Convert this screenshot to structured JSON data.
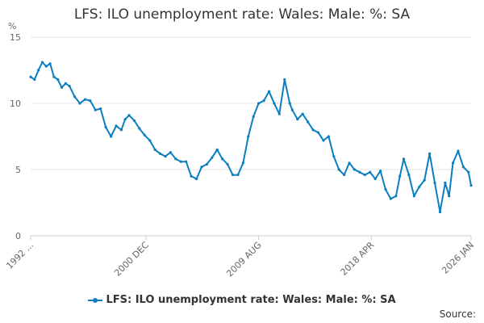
{
  "chart_data": {
    "type": "line",
    "title": "LFS: ILO unemployment rate: Wales: Male: %: SA",
    "ylabel": "%",
    "xlabel": "",
    "ylim": [
      0,
      15
    ],
    "yticks": [
      0,
      5,
      10,
      15
    ],
    "xlim": [
      1992.0,
      2026.0
    ],
    "xticks": [
      {
        "label": "1992 ...",
        "value": 1992.0
      },
      {
        "label": "2000 DEC",
        "value": 2000.9
      },
      {
        "label": "2009 AUG",
        "value": 2009.6
      },
      {
        "label": "2018 APR",
        "value": 2018.3
      },
      {
        "label": "2026 JAN",
        "value": 2026.0
      }
    ],
    "color": "#0a7ebf",
    "series": [
      {
        "name": "LFS: ILO unemployment rate: Wales: Male: %: SA",
        "x": [
          1992.0,
          1992.3,
          1992.6,
          1992.9,
          1993.2,
          1993.5,
          1993.8,
          1994.1,
          1994.4,
          1994.7,
          1995.0,
          1995.4,
          1995.8,
          1996.2,
          1996.6,
          1997.0,
          1997.4,
          1997.8,
          1998.2,
          1998.6,
          1999.0,
          1999.3,
          1999.6,
          2000.0,
          2000.4,
          2000.8,
          2001.2,
          2001.6,
          2002.0,
          2002.4,
          2002.8,
          2003.2,
          2003.6,
          2004.0,
          2004.4,
          2004.8,
          2005.2,
          2005.6,
          2006.0,
          2006.4,
          2006.8,
          2007.2,
          2007.6,
          2008.0,
          2008.4,
          2008.8,
          2009.2,
          2009.6,
          2010.0,
          2010.4,
          2010.8,
          2011.2,
          2011.6,
          2012.0,
          2012.2,
          2012.6,
          2013.0,
          2013.4,
          2013.8,
          2014.2,
          2014.6,
          2015.0,
          2015.4,
          2015.8,
          2016.2,
          2016.6,
          2017.0,
          2017.4,
          2017.8,
          2018.2,
          2018.6,
          2019.0,
          2019.4,
          2019.8,
          2020.2,
          2020.5,
          2020.8,
          2021.2,
          2021.6,
          2022.0,
          2022.4,
          2022.8,
          2023.2,
          2023.6,
          2024.0,
          2024.3,
          2024.6,
          2025.0,
          2025.4,
          2025.8,
          2026.0
        ],
        "values": [
          12.0,
          11.8,
          12.5,
          13.1,
          12.8,
          13.0,
          12.0,
          11.8,
          11.2,
          11.5,
          11.3,
          10.5,
          10.0,
          10.3,
          10.2,
          9.5,
          9.6,
          8.2,
          7.5,
          8.3,
          8.0,
          8.8,
          9.1,
          8.7,
          8.1,
          7.6,
          7.2,
          6.5,
          6.2,
          6.0,
          6.3,
          5.8,
          5.6,
          5.6,
          4.5,
          4.3,
          5.2,
          5.4,
          5.9,
          6.5,
          5.8,
          5.4,
          4.6,
          4.6,
          5.5,
          7.5,
          9.0,
          10.0,
          10.2,
          10.9,
          10.0,
          9.2,
          11.8,
          10.0,
          9.5,
          8.8,
          9.2,
          8.6,
          8.0,
          7.8,
          7.2,
          7.5,
          6.0,
          5.0,
          4.6,
          5.5,
          5.0,
          4.8,
          4.6,
          4.8,
          4.3,
          4.9,
          3.5,
          2.8,
          3.0,
          4.5,
          5.8,
          4.6,
          3.0,
          3.7,
          4.2,
          6.2,
          4.0,
          1.8,
          4.0,
          3.0,
          5.5,
          6.4,
          5.2,
          4.8,
          3.8
        ]
      }
    ]
  },
  "legend": {
    "label": "LFS: ILO unemployment rate: Wales: Male: %: SA"
  },
  "footer": {
    "source": "Source:"
  }
}
